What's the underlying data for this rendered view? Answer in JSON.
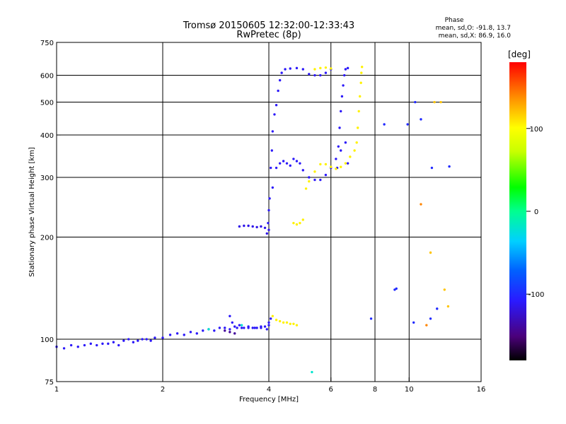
{
  "chart_data": {
    "type": "scatter",
    "title_line1": "Tromsø 20150605 12:32:00-12:33:43",
    "title_line2": "RwPretec (8p)",
    "xlabel": "Frequency [MHz]",
    "ylabel": "Stationary phase Virtual Height [km]",
    "x_scale": "log2",
    "y_scale": "log",
    "xlim": [
      1,
      16
    ],
    "ylim": [
      75,
      750
    ],
    "x_ticks": [
      1,
      2,
      4,
      6,
      8,
      10,
      16
    ],
    "x_tick_labels": [
      "1",
      "2",
      "4",
      "6",
      "8",
      "10",
      "16"
    ],
    "y_ticks": [
      75,
      100,
      200,
      300,
      400,
      500,
      600,
      750
    ],
    "y_tick_labels": [
      "75",
      "100",
      "200",
      "300",
      "400",
      "500",
      "600",
      "750"
    ],
    "grid_x": [
      2,
      4,
      6,
      8,
      10
    ],
    "grid_y": [
      100,
      200,
      300,
      400,
      500,
      600
    ],
    "phase_stats": {
      "header": "Phase",
      "line_o": "mean, sd,O: -91.8, 13.7",
      "line_x": "mean, sd,X: 86.9, 16.0"
    },
    "colorbar": {
      "label": "[deg]",
      "range": [
        -180,
        180
      ],
      "ticks": [
        -100,
        0,
        100
      ],
      "tick_labels": [
        "-100",
        "0",
        "100"
      ],
      "colormap": "rainbow"
    },
    "traces": [
      {
        "name": "",
        "phase": -110,
        "points": [
          [
            1.0,
            95
          ],
          [
            1.05,
            94
          ],
          [
            1.1,
            96
          ],
          [
            1.15,
            95
          ],
          [
            1.2,
            96
          ],
          [
            1.25,
            97
          ],
          [
            1.3,
            96
          ],
          [
            1.35,
            97
          ],
          [
            1.4,
            97
          ],
          [
            1.45,
            98
          ],
          [
            1.5,
            96
          ],
          [
            1.55,
            99
          ],
          [
            1.6,
            100
          ],
          [
            1.65,
            98
          ],
          [
            1.7,
            99
          ],
          [
            1.75,
            100
          ],
          [
            1.8,
            100
          ],
          [
            1.85,
            99
          ],
          [
            1.9,
            101
          ],
          [
            2.0,
            101
          ],
          [
            2.1,
            103
          ],
          [
            2.2,
            104
          ],
          [
            2.3,
            103
          ],
          [
            2.4,
            105
          ],
          [
            2.5,
            104
          ],
          [
            2.6,
            106
          ],
          [
            2.7,
            107
          ],
          [
            2.8,
            106
          ],
          [
            2.9,
            108
          ],
          [
            3.0,
            108
          ],
          [
            3.1,
            107
          ],
          [
            3.2,
            109
          ],
          [
            3.3,
            110
          ],
          [
            3.4,
            108
          ],
          [
            3.5,
            109
          ],
          [
            3.6,
            108
          ],
          [
            3.7,
            108
          ],
          [
            3.8,
            109
          ],
          [
            3.9,
            109
          ],
          [
            4.0,
            110
          ],
          [
            4.05,
            115
          ]
        ]
      },
      {
        "name": "",
        "phase": -110,
        "points": [
          [
            3.1,
            117
          ],
          [
            3.15,
            112
          ],
          [
            3.25,
            108
          ],
          [
            3.35,
            108
          ],
          [
            3.5,
            108
          ],
          [
            3.65,
            108
          ],
          [
            3.8,
            108
          ],
          [
            3.95,
            107
          ],
          [
            4.0,
            112
          ]
        ]
      },
      {
        "name": "",
        "phase": -115,
        "points": [
          [
            3.3,
            215
          ],
          [
            3.4,
            216
          ],
          [
            3.5,
            216
          ],
          [
            3.6,
            215
          ],
          [
            3.7,
            214
          ],
          [
            3.8,
            215
          ],
          [
            3.9,
            213
          ],
          [
            3.95,
            205
          ],
          [
            4.0,
            210
          ]
        ]
      },
      {
        "name": "",
        "phase": -110,
        "points": [
          [
            3.98,
            220
          ],
          [
            4.02,
            260
          ],
          [
            4.05,
            320
          ],
          [
            4.08,
            360
          ],
          [
            4.1,
            410
          ],
          [
            4.15,
            460
          ],
          [
            4.2,
            490
          ],
          [
            4.25,
            540
          ],
          [
            4.3,
            580
          ],
          [
            4.35,
            610
          ],
          [
            4.45,
            625
          ],
          [
            4.6,
            628
          ],
          [
            4.8,
            630
          ],
          [
            5.0,
            625
          ],
          [
            5.2,
            605
          ],
          [
            5.4,
            600
          ],
          [
            5.6,
            600
          ],
          [
            5.8,
            610
          ],
          [
            6.0,
            625
          ]
        ]
      },
      {
        "name": "",
        "phase": -110,
        "points": [
          [
            4.0,
            240
          ],
          [
            4.1,
            280
          ],
          [
            4.2,
            320
          ],
          [
            4.3,
            330
          ],
          [
            4.4,
            335
          ],
          [
            4.5,
            330
          ],
          [
            4.6,
            325
          ],
          [
            4.7,
            340
          ],
          [
            4.8,
            335
          ],
          [
            4.9,
            330
          ],
          [
            5.0,
            315
          ],
          [
            5.2,
            300
          ],
          [
            5.4,
            295
          ],
          [
            5.6,
            295
          ],
          [
            5.8,
            305
          ],
          [
            6.0,
            320
          ],
          [
            6.2,
            340
          ],
          [
            6.4,
            360
          ],
          [
            6.6,
            380
          ],
          [
            6.7,
            330
          ]
        ]
      },
      {
        "name": "",
        "phase": -110,
        "points": [
          [
            6.25,
            320
          ],
          [
            6.3,
            370
          ],
          [
            6.35,
            420
          ],
          [
            6.4,
            470
          ],
          [
            6.45,
            520
          ],
          [
            6.5,
            560
          ],
          [
            6.55,
            600
          ],
          [
            6.6,
            625
          ],
          [
            6.7,
            630
          ]
        ]
      },
      {
        "name": "",
        "phase": 105,
        "points": [
          [
            5.1,
            278
          ],
          [
            5.2,
            292
          ],
          [
            5.4,
            312
          ],
          [
            5.6,
            328
          ],
          [
            5.8,
            328
          ],
          [
            6.0,
            322
          ],
          [
            6.2,
            318
          ],
          [
            6.4,
            322
          ],
          [
            6.6,
            330
          ],
          [
            6.8,
            345
          ],
          [
            7.0,
            360
          ],
          [
            7.1,
            380
          ],
          [
            7.15,
            420
          ],
          [
            7.2,
            470
          ],
          [
            7.25,
            520
          ],
          [
            7.3,
            570
          ],
          [
            7.32,
            610
          ],
          [
            7.35,
            635
          ]
        ]
      },
      {
        "name": "",
        "phase": 105,
        "points": [
          [
            4.1,
            117
          ],
          [
            4.2,
            114
          ],
          [
            4.3,
            113
          ],
          [
            4.4,
            112
          ],
          [
            4.5,
            112
          ],
          [
            4.6,
            111
          ],
          [
            4.7,
            111
          ],
          [
            4.8,
            110
          ]
        ]
      },
      {
        "name": "",
        "phase": 105,
        "points": [
          [
            4.7,
            220
          ],
          [
            4.8,
            218
          ],
          [
            4.9,
            220
          ],
          [
            5.0,
            225
          ]
        ]
      },
      {
        "name": "",
        "phase": 105,
        "points": [
          [
            5.4,
            625
          ],
          [
            5.6,
            630
          ],
          [
            5.8,
            632
          ],
          [
            6.0,
            628
          ]
        ]
      },
      {
        "name": "",
        "phase": 140,
        "points": [
          [
            10.8,
            250
          ],
          [
            11.2,
            110
          ]
        ]
      },
      {
        "name": "",
        "phase": 120,
        "points": [
          [
            11.8,
            500
          ],
          [
            12.3,
            500
          ],
          [
            11.5,
            180
          ],
          [
            12.6,
            140
          ],
          [
            12.9,
            125
          ]
        ]
      },
      {
        "name": "",
        "phase": -100,
        "points": [
          [
            8.5,
            430
          ],
          [
            9.1,
            140
          ],
          [
            9.2,
            141
          ],
          [
            9.9,
            430
          ],
          [
            10.4,
            500
          ],
          [
            10.8,
            445
          ],
          [
            11.6,
            320
          ],
          [
            13.0,
            323
          ],
          [
            7.8,
            115
          ],
          [
            10.3,
            112
          ],
          [
            11.5,
            115
          ],
          [
            12.0,
            123
          ]
        ]
      },
      {
        "name": "",
        "phase": -140,
        "points": [
          [
            3.0,
            106
          ],
          [
            3.1,
            105
          ],
          [
            3.2,
            104
          ]
        ]
      },
      {
        "name": "",
        "phase": -20,
        "points": [
          [
            5.3,
            80
          ],
          [
            2.7,
            107
          ],
          [
            3.35,
            110
          ]
        ]
      }
    ]
  }
}
